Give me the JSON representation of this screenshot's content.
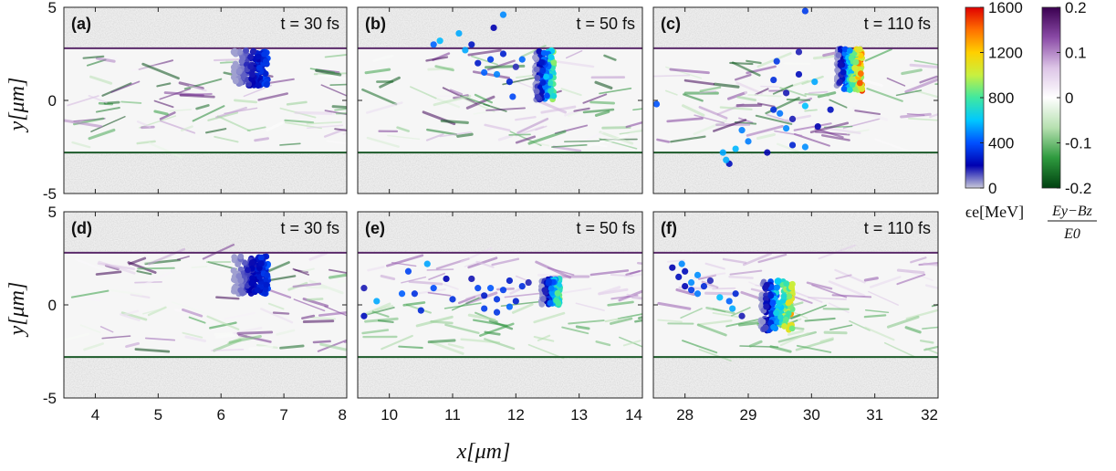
{
  "chart_data": {
    "type": "scatter",
    "ylabel": "y[μm]",
    "xlabel": "x[μm]",
    "ylim": [
      -5,
      5
    ],
    "yticks": [
      "5",
      "0",
      "-5"
    ],
    "channel_y": [
      -2.8,
      2.8
    ],
    "rows": [
      {
        "xticks_groups": [
          [
            "4",
            "5",
            "6",
            "7",
            "8"
          ],
          [
            "10",
            "11",
            "12",
            "13",
            "14"
          ],
          [
            "28",
            "29",
            "30",
            "31",
            "32"
          ]
        ]
      },
      {
        "xticks_groups": [
          [
            "4",
            "5",
            "6",
            "7",
            "8"
          ],
          [
            "10",
            "11",
            "12",
            "13",
            "14"
          ],
          [
            "28",
            "29",
            "30",
            "31",
            "32"
          ]
        ]
      }
    ],
    "panels": [
      {
        "id": "a",
        "label": "(a)",
        "time": "t = 30 fs",
        "xlim": [
          3.5,
          8
        ],
        "bunch": {
          "xmin": 6.2,
          "xmax": 6.75,
          "ytop": 2.7,
          "ybot": 0.8,
          "emax": 450
        }
      },
      {
        "id": "b",
        "label": "(b)",
        "time": "t = 50 fs",
        "xlim": [
          9.5,
          14
        ],
        "bunch": {
          "xmin": 12.3,
          "xmax": 12.6,
          "ytop": 2.7,
          "ybot": 0.0,
          "emax": 1000
        },
        "scatter": [
          [
            10.8,
            3.2
          ],
          [
            11.1,
            3.6
          ],
          [
            11.4,
            2.0
          ],
          [
            11.6,
            2.2
          ],
          [
            11.7,
            1.4
          ],
          [
            11.9,
            1.0
          ],
          [
            11.8,
            2.5
          ],
          [
            11.5,
            1.5
          ],
          [
            10.7,
            3.0
          ],
          [
            11.2,
            2.7
          ],
          [
            12.0,
            1.8
          ],
          [
            11.95,
            0.2
          ],
          [
            12.1,
            2.2
          ],
          [
            11.3,
            3.0
          ],
          [
            11.65,
            3.9
          ],
          [
            11.8,
            4.6
          ]
        ]
      },
      {
        "id": "c",
        "label": "(c)",
        "time": "t = 110 fs",
        "xlim": [
          27.5,
          32
        ],
        "bunch": {
          "xmin": 30.4,
          "xmax": 30.8,
          "ytop": 2.8,
          "ybot": 0.5,
          "emax": 1600
        },
        "scatter": [
          [
            27.55,
            -0.2
          ],
          [
            28.8,
            -2.6
          ],
          [
            29.0,
            -2.2
          ],
          [
            28.9,
            -1.6
          ],
          [
            29.3,
            -2.8
          ],
          [
            29.6,
            -1.5
          ],
          [
            29.7,
            -2.4
          ],
          [
            29.9,
            -2.5
          ],
          [
            29.5,
            -0.7
          ],
          [
            29.4,
            -0.5
          ],
          [
            29.4,
            1.1
          ],
          [
            29.6,
            0.4
          ],
          [
            29.8,
            1.4
          ],
          [
            29.9,
            -0.3
          ],
          [
            29.8,
            2.6
          ],
          [
            30.05,
            1.0
          ],
          [
            29.45,
            2.1
          ],
          [
            29.7,
            -1.0
          ],
          [
            28.6,
            -2.8
          ],
          [
            28.7,
            -3.4
          ],
          [
            28.65,
            -3.2
          ],
          [
            30.1,
            -1.4
          ],
          [
            30.3,
            -0.5
          ],
          [
            29.9,
            4.8
          ]
        ]
      },
      {
        "id": "d",
        "label": "(d)",
        "time": "t = 30 fs",
        "xlim": [
          3.5,
          8
        ],
        "bunch": {
          "xmin": 6.2,
          "xmax": 6.75,
          "ytop": 2.6,
          "ybot": 0.6,
          "emax": 450
        }
      },
      {
        "id": "e",
        "label": "(e)",
        "time": "t = 50 fs",
        "xlim": [
          9.5,
          14
        ],
        "bunch": {
          "xmin": 12.4,
          "xmax": 12.7,
          "ytop": 1.4,
          "ybot": 0.0,
          "emax": 1000
        },
        "scatter": [
          [
            9.6,
            0.9
          ],
          [
            9.8,
            0.2
          ],
          [
            9.6,
            -0.6
          ],
          [
            10.2,
            0.6
          ],
          [
            10.4,
            0.6
          ],
          [
            10.5,
            -0.3
          ],
          [
            10.7,
            0.9
          ],
          [
            10.9,
            1.4
          ],
          [
            11.0,
            0.3
          ],
          [
            10.6,
            2.2
          ],
          [
            11.5,
            0.5
          ],
          [
            11.6,
            0.9
          ],
          [
            11.7,
            0.3
          ],
          [
            11.8,
            0.8
          ],
          [
            11.5,
            -0.2
          ],
          [
            11.9,
            1.3
          ],
          [
            12.1,
            1.0
          ],
          [
            12.0,
            0.2
          ],
          [
            11.4,
            0.9
          ],
          [
            11.7,
            -0.4
          ],
          [
            11.9,
            -0.1
          ],
          [
            12.2,
            1.2
          ],
          [
            11.3,
            1.4
          ],
          [
            10.3,
            1.8
          ]
        ]
      },
      {
        "id": "f",
        "label": "(f)",
        "time": "t = 110 fs",
        "xlim": [
          27.5,
          32
        ],
        "bunch": {
          "xmin": 29.2,
          "xmax": 29.7,
          "ytop": 1.3,
          "ybot": -1.4,
          "emax": 1400
        },
        "scatter": [
          [
            27.8,
            2.0
          ],
          [
            27.9,
            1.5
          ],
          [
            28.0,
            1.8
          ],
          [
            28.1,
            1.2
          ],
          [
            28.2,
            1.6
          ],
          [
            28.3,
            1.0
          ],
          [
            28.1,
            0.8
          ],
          [
            27.95,
            2.2
          ],
          [
            28.4,
            1.3
          ],
          [
            28.55,
            0.4
          ],
          [
            28.7,
            0.2
          ],
          [
            28.8,
            0.6
          ],
          [
            28.9,
            -0.6
          ],
          [
            28.75,
            -0.2
          ],
          [
            28.2,
            0.6
          ],
          [
            28.0,
            1.0
          ]
        ]
      }
    ],
    "energy_colorbar": {
      "label": "ϵe[MeV]",
      "ticks": [
        "1600",
        "1200",
        "800",
        "400",
        "0"
      ],
      "range": [
        0,
        1600
      ],
      "colors": [
        "#c8c8d8",
        "#0000b0",
        "#0050ff",
        "#00c8ff",
        "#40e8a0",
        "#c8f040",
        "#ffd000",
        "#ff7000",
        "#e00000"
      ]
    },
    "field_colorbar": {
      "label_num": "Ey−Bz",
      "label_den": "E0",
      "ticks": [
        "0.2",
        "0.1",
        "0",
        "-0.1",
        "-0.2"
      ],
      "range": [
        -0.2,
        0.2
      ],
      "colors": [
        "#004010",
        "#2e9a3e",
        "#b6e0b0",
        "#ffffff",
        "#dcc4e6",
        "#8a4aa6",
        "#3a0050"
      ]
    }
  }
}
